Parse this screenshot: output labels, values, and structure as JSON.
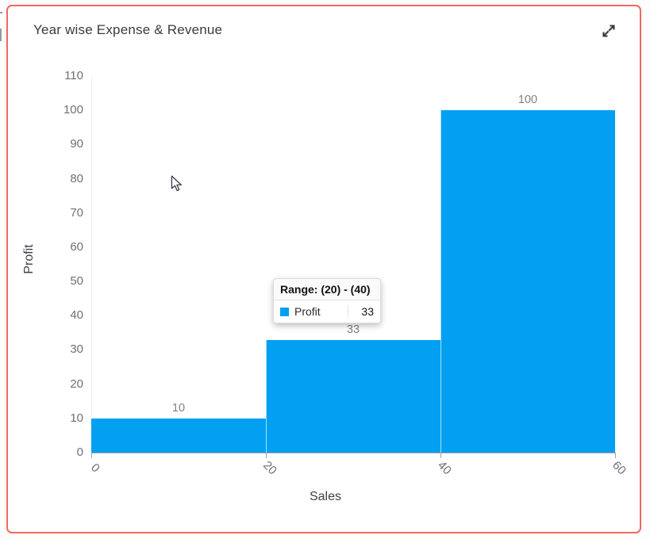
{
  "card": {
    "title": "Year wise Expense & Revenue",
    "border_color": "#f2685e",
    "background": "#ffffff"
  },
  "chart_data": {
    "type": "bar",
    "subtype": "histogram",
    "title": "Year wise Expense & Revenue",
    "xlabel": "Sales",
    "ylabel": "Profit",
    "xlim": [
      0,
      60
    ],
    "ylim": [
      0,
      110
    ],
    "x_ticks": [
      0,
      20,
      40,
      60
    ],
    "y_ticks": [
      0,
      10,
      20,
      30,
      40,
      50,
      60,
      70,
      80,
      90,
      100,
      110
    ],
    "x_tick_rotation_deg": 45,
    "grid": false,
    "legend_position": "none",
    "bar_color": "#03a0f1",
    "series": [
      {
        "name": "Profit",
        "bins": [
          {
            "x0": 0,
            "x1": 20,
            "value": 10
          },
          {
            "x0": 20,
            "x1": 40,
            "value": 33
          },
          {
            "x0": 40,
            "x1": 60,
            "value": 100
          }
        ]
      }
    ],
    "data_labels": [
      10,
      33,
      100
    ]
  },
  "tooltip": {
    "header": "Range: (20) - (40)",
    "series_label": "Profit",
    "value": "33",
    "swatch_color": "#03a0f1"
  },
  "icons": {
    "expand": "expand-diagonal-arrows"
  }
}
